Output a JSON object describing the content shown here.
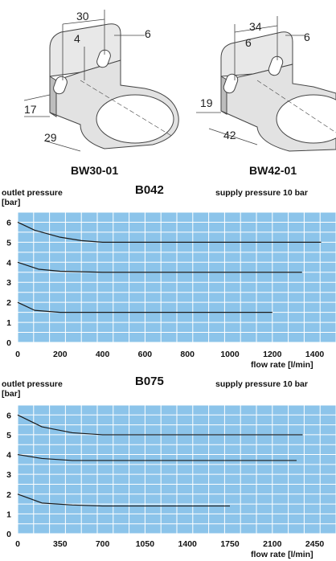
{
  "brackets": [
    {
      "name": "BW30-01",
      "dims": [
        "30",
        "4",
        "6",
        "17",
        "29"
      ]
    },
    {
      "name": "BW42-01",
      "dims": [
        "34",
        "6",
        "6",
        "19",
        "42"
      ]
    }
  ],
  "colors": {
    "plot_bg": "#8cc4ea",
    "grid": "#ffffff",
    "curve": "#1a1a1a"
  },
  "chart_data": [
    {
      "type": "line",
      "title": "B042",
      "ylabel": "outlet pressure",
      "yunit": "[bar]",
      "note": "supply pressure 10 bar",
      "xlabel": "flow rate [l/min]",
      "x_ticks": [
        "0",
        "200",
        "400",
        "600",
        "800",
        "1000",
        "1200",
        "1400"
      ],
      "y_ticks": [
        "0",
        "1",
        "2",
        "3",
        "4",
        "5",
        "6"
      ],
      "xlim": [
        0,
        1500
      ],
      "ylim": [
        0,
        6.5
      ],
      "series": [
        {
          "x": [
            0,
            80,
            200,
            300,
            400,
            600,
            800,
            1000,
            1200,
            1430
          ],
          "y": [
            6.0,
            5.6,
            5.25,
            5.08,
            5.0,
            5.0,
            5.0,
            5.0,
            5.0,
            5.0
          ]
        },
        {
          "x": [
            0,
            100,
            200,
            400,
            600,
            800,
            1000,
            1200,
            1340
          ],
          "y": [
            4.0,
            3.65,
            3.55,
            3.5,
            3.5,
            3.5,
            3.5,
            3.5,
            3.5
          ]
        },
        {
          "x": [
            0,
            80,
            200,
            400,
            600,
            800,
            1000,
            1200
          ],
          "y": [
            2.0,
            1.6,
            1.5,
            1.5,
            1.5,
            1.5,
            1.5,
            1.5
          ]
        }
      ]
    },
    {
      "type": "line",
      "title": "B075",
      "ylabel": "outlet pressure",
      "yunit": "[bar]",
      "note": "supply pressure 10 bar",
      "xlabel": "flow rate [l/min]",
      "x_ticks": [
        "0",
        "350",
        "700",
        "1050",
        "1400",
        "1750",
        "2100",
        "2450"
      ],
      "y_ticks": [
        "0",
        "1",
        "2",
        "3",
        "4",
        "5",
        "6"
      ],
      "xlim": [
        0,
        2625
      ],
      "ylim": [
        0,
        6.5
      ],
      "series": [
        {
          "x": [
            0,
            200,
            450,
            700,
            1000,
            1400,
            1750,
            2100,
            2350
          ],
          "y": [
            6.0,
            5.4,
            5.1,
            5.0,
            5.0,
            5.0,
            5.0,
            5.0,
            5.0
          ]
        },
        {
          "x": [
            0,
            200,
            450,
            700,
            1050,
            1400,
            1750,
            2100,
            2300
          ],
          "y": [
            4.0,
            3.8,
            3.7,
            3.7,
            3.7,
            3.7,
            3.7,
            3.7,
            3.7
          ]
        },
        {
          "x": [
            0,
            200,
            450,
            700,
            1050,
            1400,
            1750
          ],
          "y": [
            2.0,
            1.55,
            1.45,
            1.4,
            1.4,
            1.4,
            1.4
          ]
        }
      ]
    }
  ]
}
